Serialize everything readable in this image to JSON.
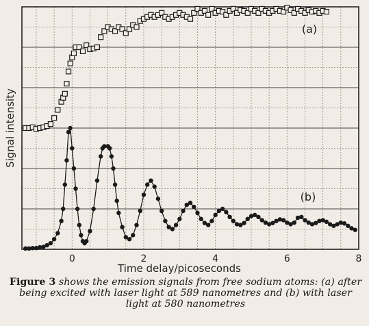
{
  "caption": {
    "figure_label": "Figure 3",
    "text": "shows the emission signals from free sodium atoms: (a) after being excited with laser light at 589 nanometres and (b) with laser light at 580 nanometres"
  },
  "chart_data": {
    "type": "scatter",
    "title": "",
    "xlabel": "Time delay/picoseconds",
    "ylabel": "Signal intensity",
    "xlim": [
      -1.4,
      8
    ],
    "ylim": [
      0,
      6
    ],
    "x_ticks": [
      0,
      2,
      4,
      6,
      8
    ],
    "y_ticks": [],
    "grid": true,
    "legend": "none",
    "series": [
      {
        "name": "(a)",
        "marker": "open-square",
        "color": "#1a1a1a",
        "connected": false,
        "x": [
          -1.3,
          -1.2,
          -1.1,
          -1.0,
          -0.9,
          -0.8,
          -0.7,
          -0.6,
          -0.5,
          -0.4,
          -0.3,
          -0.25,
          -0.2,
          -0.15,
          -0.1,
          -0.05,
          0.0,
          0.05,
          0.1,
          0.2,
          0.3,
          0.4,
          0.5,
          0.6,
          0.7,
          0.8,
          0.9,
          1.0,
          1.1,
          1.2,
          1.3,
          1.4,
          1.5,
          1.6,
          1.7,
          1.8,
          1.9,
          2.0,
          2.1,
          2.2,
          2.3,
          2.4,
          2.5,
          2.6,
          2.7,
          2.8,
          2.9,
          3.0,
          3.1,
          3.2,
          3.3,
          3.4,
          3.5,
          3.6,
          3.7,
          3.8,
          3.9,
          4.0,
          4.1,
          4.2,
          4.3,
          4.4,
          4.5,
          4.6,
          4.7,
          4.8,
          4.9,
          5.0,
          5.1,
          5.2,
          5.3,
          5.4,
          5.5,
          5.6,
          5.7,
          5.8,
          5.9,
          6.0,
          6.1,
          6.2,
          6.3,
          6.4,
          6.5,
          6.6,
          6.7,
          6.8,
          6.9,
          7.0,
          7.1
        ],
        "y": [
          3.0,
          3.0,
          3.02,
          2.98,
          3.0,
          3.02,
          3.05,
          3.1,
          3.25,
          3.45,
          3.65,
          3.75,
          3.85,
          4.1,
          4.4,
          4.6,
          4.75,
          4.85,
          5.0,
          5.0,
          4.9,
          5.05,
          4.95,
          4.97,
          5.0,
          5.25,
          5.4,
          5.5,
          5.45,
          5.4,
          5.5,
          5.45,
          5.35,
          5.45,
          5.55,
          5.5,
          5.65,
          5.7,
          5.75,
          5.8,
          5.75,
          5.8,
          5.85,
          5.75,
          5.7,
          5.75,
          5.8,
          5.85,
          5.8,
          5.75,
          5.7,
          5.85,
          5.95,
          5.85,
          5.9,
          5.8,
          5.95,
          5.85,
          5.9,
          5.88,
          5.8,
          5.9,
          5.95,
          5.85,
          5.92,
          5.9,
          5.85,
          5.95,
          5.9,
          5.85,
          5.95,
          5.9,
          5.85,
          5.9,
          5.95,
          5.9,
          5.88,
          5.98,
          5.92,
          5.85,
          5.95,
          5.9,
          5.85,
          5.92,
          5.88,
          5.9,
          5.85,
          5.9,
          5.88
        ]
      },
      {
        "name": "(b)",
        "marker": "filled-circle",
        "color": "#1a1a1a",
        "connected": true,
        "x": [
          -1.3,
          -1.2,
          -1.1,
          -1.0,
          -0.9,
          -0.8,
          -0.7,
          -0.6,
          -0.5,
          -0.4,
          -0.3,
          -0.25,
          -0.2,
          -0.15,
          -0.1,
          -0.05,
          0.0,
          0.05,
          0.1,
          0.15,
          0.2,
          0.25,
          0.3,
          0.35,
          0.4,
          0.5,
          0.6,
          0.7,
          0.8,
          0.85,
          0.9,
          1.0,
          1.05,
          1.1,
          1.15,
          1.2,
          1.25,
          1.3,
          1.4,
          1.5,
          1.6,
          1.7,
          1.8,
          1.9,
          2.0,
          2.1,
          2.2,
          2.3,
          2.4,
          2.5,
          2.6,
          2.7,
          2.8,
          2.9,
          3.0,
          3.1,
          3.2,
          3.3,
          3.4,
          3.5,
          3.6,
          3.7,
          3.8,
          3.9,
          4.0,
          4.1,
          4.2,
          4.3,
          4.4,
          4.5,
          4.6,
          4.7,
          4.8,
          4.9,
          5.0,
          5.1,
          5.2,
          5.3,
          5.4,
          5.5,
          5.6,
          5.7,
          5.8,
          5.9,
          6.0,
          6.1,
          6.2,
          6.3,
          6.4,
          6.5,
          6.6,
          6.7,
          6.8,
          6.9,
          7.0,
          7.1,
          7.2,
          7.3,
          7.4,
          7.5,
          7.6,
          7.7,
          7.8,
          7.9
        ],
        "y": [
          0.02,
          0.02,
          0.03,
          0.03,
          0.05,
          0.06,
          0.1,
          0.15,
          0.25,
          0.4,
          0.7,
          1.0,
          1.6,
          2.2,
          2.9,
          3.0,
          2.5,
          2.0,
          1.5,
          1.0,
          0.6,
          0.35,
          0.2,
          0.15,
          0.2,
          0.45,
          1.0,
          1.7,
          2.3,
          2.5,
          2.55,
          2.55,
          2.5,
          2.3,
          2.0,
          1.6,
          1.2,
          0.9,
          0.55,
          0.3,
          0.25,
          0.35,
          0.6,
          0.95,
          1.35,
          1.6,
          1.7,
          1.55,
          1.25,
          0.95,
          0.7,
          0.55,
          0.5,
          0.6,
          0.75,
          0.95,
          1.1,
          1.15,
          1.05,
          0.9,
          0.75,
          0.65,
          0.6,
          0.7,
          0.85,
          0.95,
          1.0,
          0.92,
          0.8,
          0.7,
          0.62,
          0.6,
          0.65,
          0.75,
          0.82,
          0.85,
          0.8,
          0.72,
          0.66,
          0.62,
          0.65,
          0.7,
          0.74,
          0.72,
          0.66,
          0.62,
          0.66,
          0.78,
          0.8,
          0.72,
          0.66,
          0.62,
          0.65,
          0.7,
          0.72,
          0.68,
          0.62,
          0.58,
          0.62,
          0.66,
          0.64,
          0.58,
          0.52,
          0.48
        ]
      }
    ]
  }
}
